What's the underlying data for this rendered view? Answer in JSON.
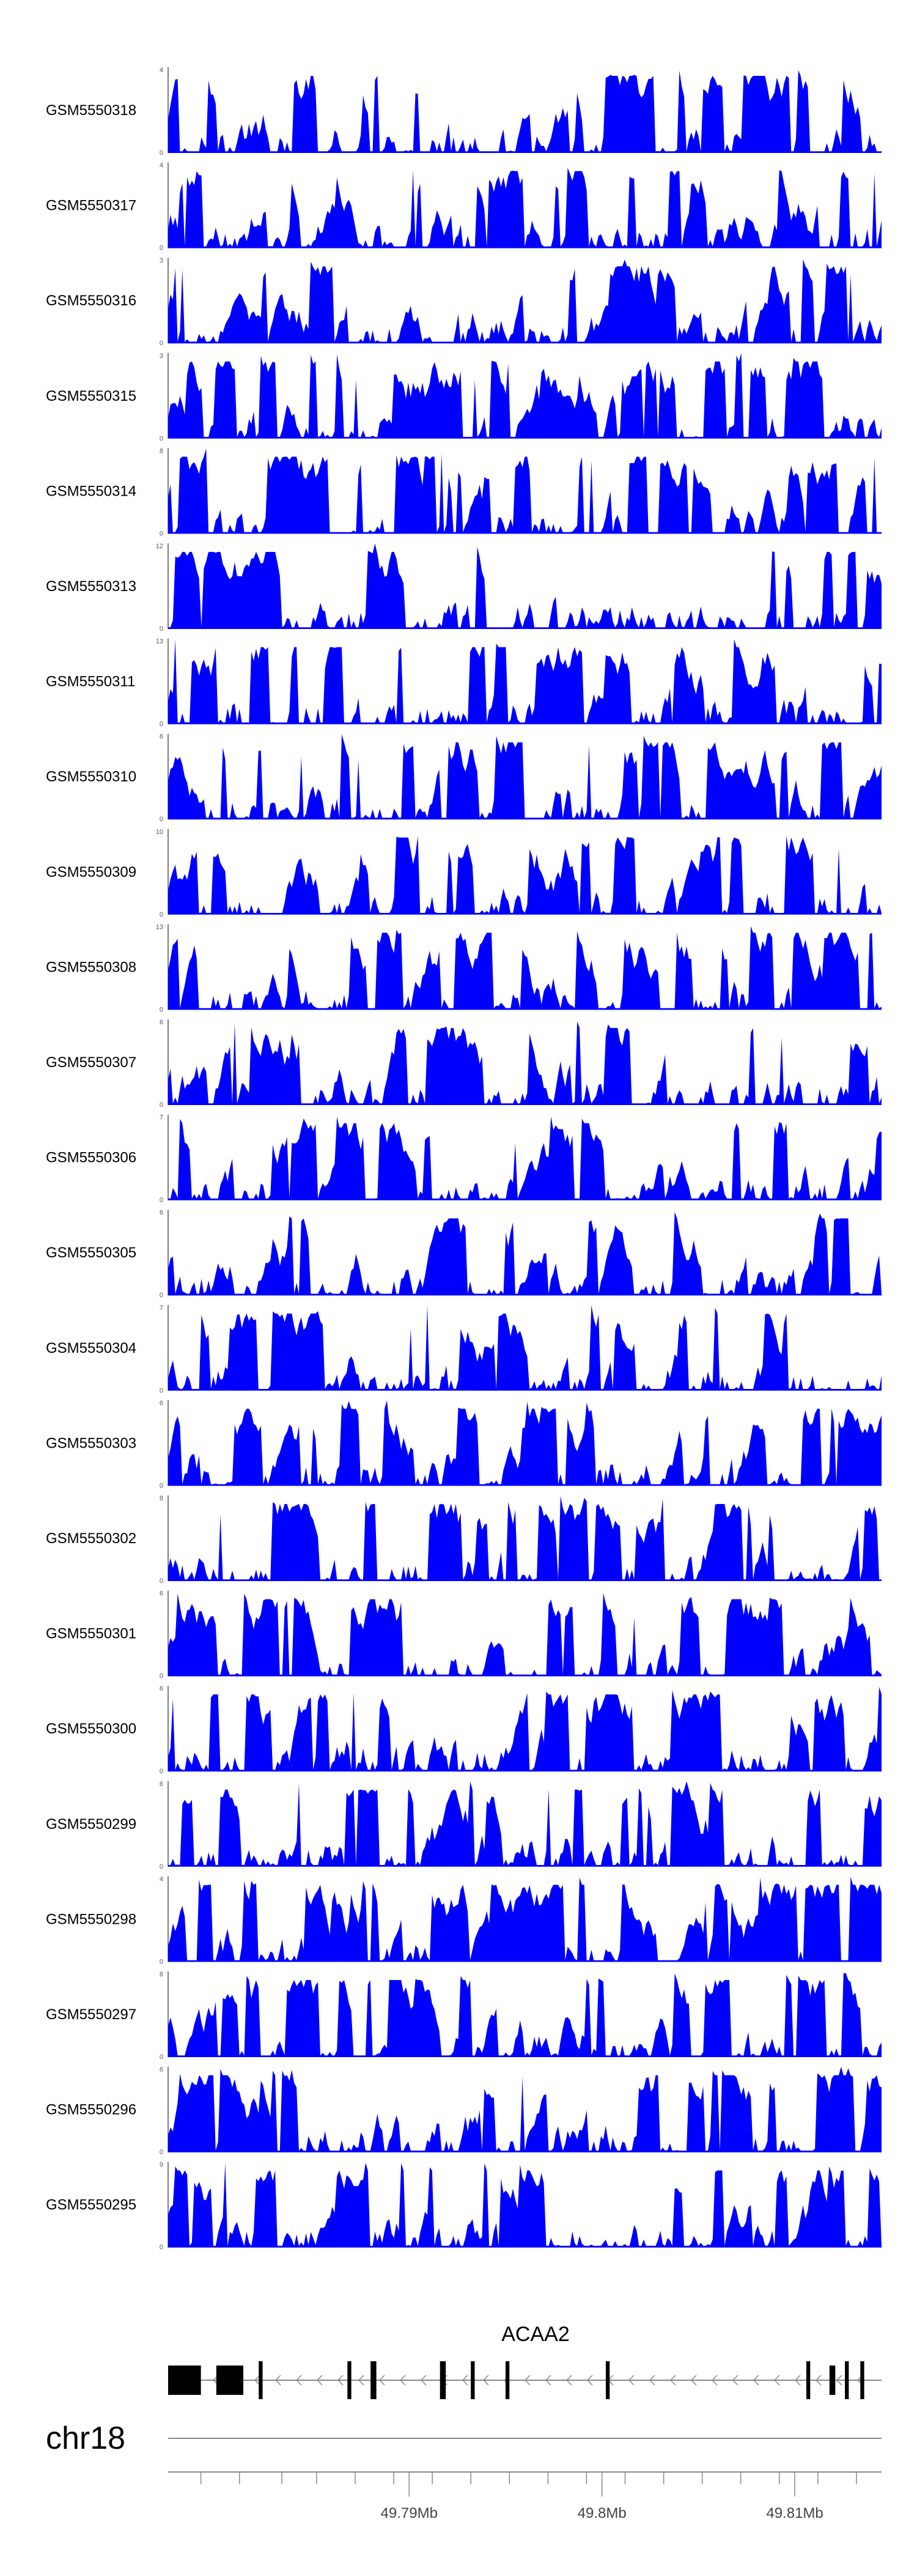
{
  "chart_data": {
    "type": "area",
    "tracks": [
      {
        "label": "GSM5550318",
        "ymax": "4",
        "ymin": "0",
        "seed": 318
      },
      {
        "label": "GSM5550317",
        "ymax": "4",
        "ymin": "0",
        "seed": 317
      },
      {
        "label": "GSM5550316",
        "ymax": "3",
        "ymin": "0",
        "seed": 316
      },
      {
        "label": "GSM5550315",
        "ymax": "3",
        "ymin": "0",
        "seed": 315
      },
      {
        "label": "GSM5550314",
        "ymax": "8",
        "ymin": "0",
        "seed": 314
      },
      {
        "label": "GSM5550313",
        "ymax": "12",
        "ymin": "0",
        "seed": 313
      },
      {
        "label": "GSM5550311",
        "ymax": "13",
        "ymin": "0",
        "seed": 311
      },
      {
        "label": "GSM5550310",
        "ymax": "6",
        "ymin": "0",
        "seed": 310
      },
      {
        "label": "GSM5550309",
        "ymax": "10",
        "ymin": "0",
        "seed": 309
      },
      {
        "label": "GSM5550308",
        "ymax": "13",
        "ymin": "0",
        "seed": 308
      },
      {
        "label": "GSM5550307",
        "ymax": "6",
        "ymin": "0",
        "seed": 307
      },
      {
        "label": "GSM5550306",
        "ymax": "7",
        "ymin": "0",
        "seed": 306
      },
      {
        "label": "GSM5550305",
        "ymax": "6",
        "ymin": "0",
        "seed": 305
      },
      {
        "label": "GSM5550304",
        "ymax": "7",
        "ymin": "0",
        "seed": 304
      },
      {
        "label": "GSM5550303",
        "ymax": "6",
        "ymin": "0",
        "seed": 303
      },
      {
        "label": "GSM5550302",
        "ymax": "8",
        "ymin": "0",
        "seed": 302
      },
      {
        "label": "GSM5550301",
        "ymax": "6",
        "ymin": "0",
        "seed": 301
      },
      {
        "label": "GSM5550300",
        "ymax": "6",
        "ymin": "0",
        "seed": 300
      },
      {
        "label": "GSM5550299",
        "ymax": "6",
        "ymin": "0",
        "seed": 299
      },
      {
        "label": "GSM5550298",
        "ymax": "4",
        "ymin": "0",
        "seed": 298
      },
      {
        "label": "GSM5550297",
        "ymax": "8",
        "ymin": "0",
        "seed": 297
      },
      {
        "label": "GSM5550296",
        "ymax": "6",
        "ymin": "0",
        "seed": 296
      },
      {
        "label": "GSM5550295",
        "ymax": "9",
        "ymin": "0",
        "seed": 295
      }
    ],
    "xrange": [
      49.7775,
      49.8145
    ],
    "gene": {
      "name": "ACAA2",
      "strand": "-",
      "start": 49.7775,
      "end": 49.8145,
      "exons": [
        {
          "start": 49.7775,
          "end": 49.7792,
          "thick": true
        },
        {
          "start": 49.78,
          "end": 49.7814,
          "thick": true
        },
        {
          "start": 49.7822,
          "end": 49.7824
        },
        {
          "start": 49.7868,
          "end": 49.787
        },
        {
          "start": 49.788,
          "end": 49.7883
        },
        {
          "start": 49.7916,
          "end": 49.7919
        },
        {
          "start": 49.7932,
          "end": 49.7934
        },
        {
          "start": 49.795,
          "end": 49.7952
        },
        {
          "start": 49.8002,
          "end": 49.8004
        },
        {
          "start": 49.8106,
          "end": 49.8108
        },
        {
          "start": 49.8118,
          "end": 49.8121,
          "thick": true
        },
        {
          "start": 49.8126,
          "end": 49.8128
        },
        {
          "start": 49.8134,
          "end": 49.8136
        }
      ]
    },
    "axis": {
      "chromosome": "chr18",
      "ticks": [
        {
          "pos": 49.79,
          "label": "49.79Mb"
        },
        {
          "pos": 49.8,
          "label": "49.8Mb"
        },
        {
          "pos": 49.81,
          "label": "49.81Mb"
        }
      ],
      "minor_ticks": [
        49.7792,
        49.7812,
        49.7834,
        49.7852,
        49.7872,
        49.7892,
        49.7912,
        49.7932,
        49.7952,
        49.7972,
        49.7992,
        49.8012,
        49.8032,
        49.8052,
        49.8072,
        49.8092,
        49.8112,
        49.8132
      ]
    },
    "fill_color": "#0000ff"
  }
}
